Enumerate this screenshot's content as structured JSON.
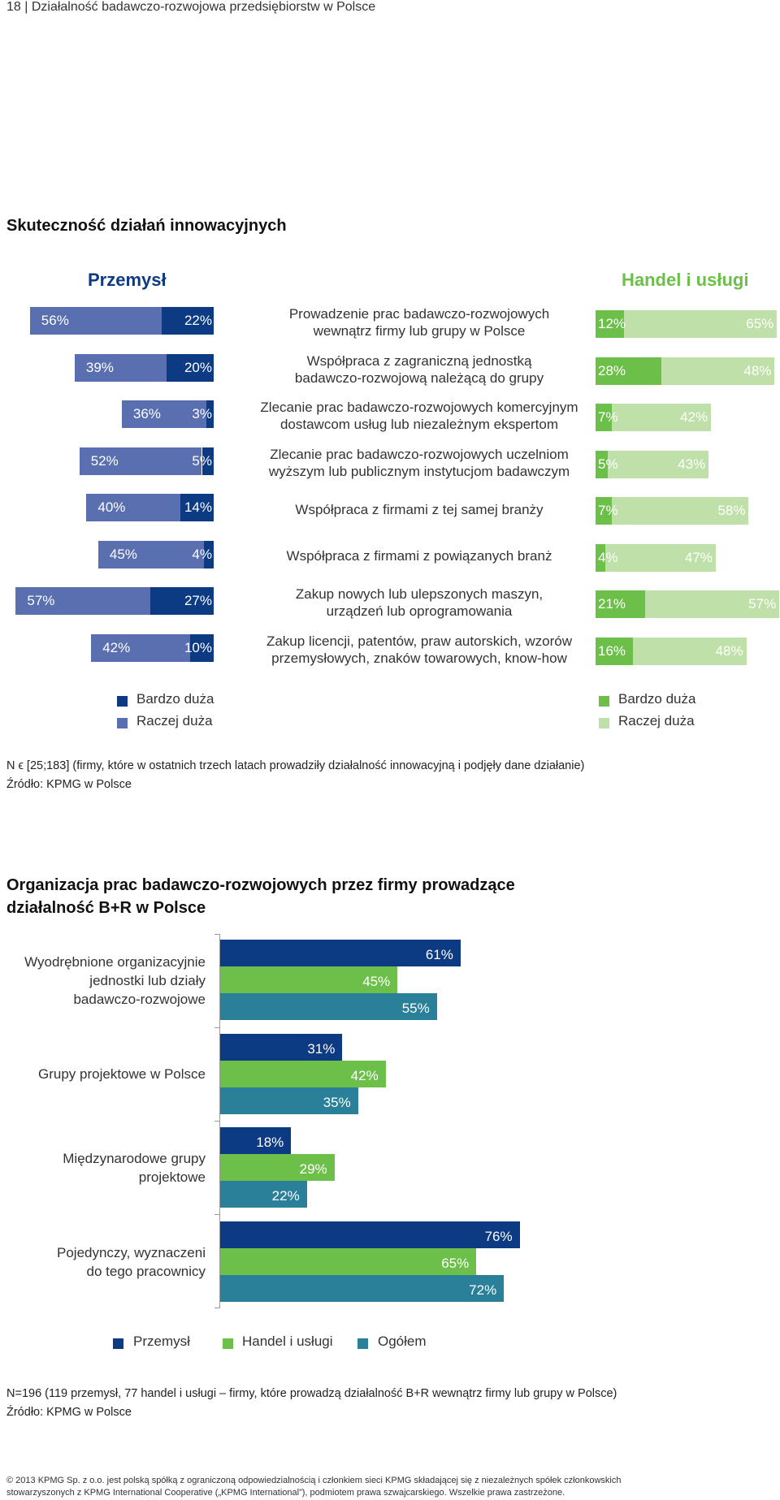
{
  "header": "18 | Działalność badawczo-rozwojowa przedsiębiorstw w Polsce",
  "colors": {
    "industry_dark": "#0c3a83",
    "industry_light": "#5a6fb0",
    "trade_dark": "#6cc04a",
    "trade_light": "#bfe0a8",
    "overall": "#2a7f99"
  },
  "chart1": {
    "title": "Skuteczność działań innowacyjnych",
    "left_title": "Przemysł",
    "right_title": "Handel i usługi",
    "legend_left": [
      "Bardzo duża",
      "Raczej duża"
    ],
    "legend_right": [
      "Bardzo duża",
      "Raczej duża"
    ],
    "note": "N ϵ [25;183] (firmy, które w ostatnich trzech latach prowadziły działalność innowacyjną i podjęły dane działanie)",
    "source": "Źródło: KPMG w Polsce"
  },
  "chart_data": [
    {
      "type": "bar",
      "title": "Skuteczność działań innowacyjnych",
      "orientation": "horizontal-stacked-diverging",
      "categories": [
        "Prowadzenie prac badawczo-rozwojowych wewnątrz firmy lub grupy w Polsce",
        "Współpraca z zagraniczną jednostką badawczo-rozwojową należącą do grupy",
        "Zlecanie prac badawczo-rozwojowych komercyjnym dostawcom usług lub niezależnym ekspertom",
        "Zlecanie prac badawczo-rozwojowych uczelniom wyższym lub publicznym instytucjom badawczym",
        "Współpraca z firmami z tej samej branży",
        "Współpraca z firmami z powiązanych branż",
        "Zakup nowych lub ulepszonych maszyn, urządzeń lub oprogramowania",
        "Zakup licencji, patentów, praw autorskich, wzorów przemysłowych, znaków towarowych, know-how"
      ],
      "category_lines": [
        [
          "Prowadzenie prac badawczo-rozwojowych",
          "wewnątrz firmy lub grupy w Polsce"
        ],
        [
          "Współpraca z zagraniczną jednostką",
          "badawczo-rozwojową należącą do grupy"
        ],
        [
          "Zlecanie prac badawczo-rozwojowych komercyjnym",
          "dostawcom usług lub niezależnym ekspertom"
        ],
        [
          "Zlecanie prac badawczo-rozwojowych uczelniom",
          "wyższym lub publicznym instytucjom badawczym"
        ],
        [
          "Współpraca z firmami z tej samej branży"
        ],
        [
          "Współpraca z firmami z powiązanych branż"
        ],
        [
          "Zakup nowych lub ulepszonych maszyn,",
          "urządzeń lub oprogramowania"
        ],
        [
          "Zakup licencji, patentów, praw autorskich, wzorów",
          "przemysłowych, znaków towarowych, know-how"
        ]
      ],
      "series": [
        {
          "name": "Przemysł – Bardzo duża",
          "values": [
            22,
            20,
            3,
            5,
            14,
            4,
            27,
            10
          ]
        },
        {
          "name": "Przemysł – Raczej duża",
          "values": [
            56,
            39,
            36,
            52,
            40,
            45,
            57,
            42
          ]
        },
        {
          "name": "Handel i usługi – Bardzo duża",
          "values": [
            12,
            28,
            7,
            5,
            7,
            4,
            21,
            16
          ]
        },
        {
          "name": "Handel i usługi – Raczej duża",
          "values": [
            65,
            48,
            42,
            43,
            58,
            47,
            57,
            48
          ]
        }
      ],
      "unit": "%"
    },
    {
      "type": "bar",
      "title": "Organizacja prac badawczo-rozwojowych przez firmy prowadzące działalność B+R w Polsce",
      "orientation": "horizontal-grouped",
      "categories": [
        "Wyodrębnione organizacyjnie jednostki lub działy badawczo-rozwojowe",
        "Grupy projektowe w Polsce",
        "Międzynarodowe grupy projektowe",
        "Pojedynczy, wyznaczeni do tego pracownicy"
      ],
      "category_lines": [
        [
          "Wyodrębnione organizacyjnie",
          "jednostki lub działy",
          "badawczo-rozwojowe"
        ],
        [
          "Grupy projektowe w Polsce"
        ],
        [
          "Międzynarodowe grupy",
          "projektowe"
        ],
        [
          "Pojedynczy, wyznaczeni",
          "do tego pracownicy"
        ]
      ],
      "series": [
        {
          "name": "Przemysł",
          "values": [
            61,
            31,
            18,
            76
          ]
        },
        {
          "name": "Handel i usługi",
          "values": [
            45,
            42,
            29,
            65
          ]
        },
        {
          "name": "Ogółem",
          "values": [
            55,
            35,
            22,
            72
          ]
        }
      ],
      "unit": "%"
    }
  ],
  "chart2": {
    "title_lines": [
      "Organizacja prac badawczo-rozwojowych przez firmy prowadzące",
      "działalność B+R w Polsce"
    ],
    "legend": [
      "Przemysł",
      "Handel i usługi",
      "Ogółem"
    ],
    "note": "N=196 (119 przemysł, 77 handel i usługi – firmy, które prowadzą działalność B+R wewnątrz firmy lub grupy w Polsce)",
    "source": "Źródło: KPMG w Polsce"
  },
  "footer_lines": [
    "© 2013 KPMG Sp. z o.o. jest polską spółką z ograniczoną odpowiedzialnością i członkiem sieci KPMG składającej się z niezależnych spółek członkowskich",
    "stowarzyszonych z KPMG International Cooperative („KPMG International”), podmiotem prawa szwajcarskiego. Wszelkie prawa zastrzeżone."
  ]
}
